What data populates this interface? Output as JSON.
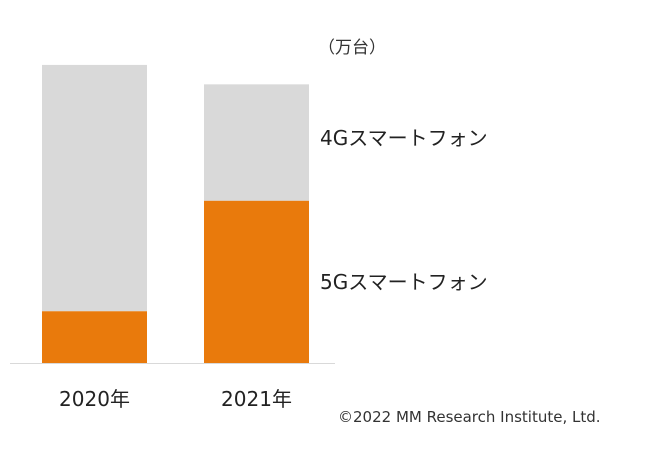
{
  "chart_data": {
    "type": "bar",
    "stacked": true,
    "unit_label": "（万台）",
    "categories": [
      "2020年",
      "2021年"
    ],
    "series": [
      {
        "name": "5Gスマートフォン",
        "values": [
          160,
          501
        ],
        "color": "#E97A0C"
      },
      {
        "name": "4Gスマートフォン",
        "values": [
          760,
          359
        ],
        "color": "#D9D9D9"
      }
    ],
    "ylim": [
      0,
      1000
    ],
    "grid": false,
    "legend": "right (inline labels)"
  },
  "copyright": "©2022 MM Research Institute, Ltd."
}
